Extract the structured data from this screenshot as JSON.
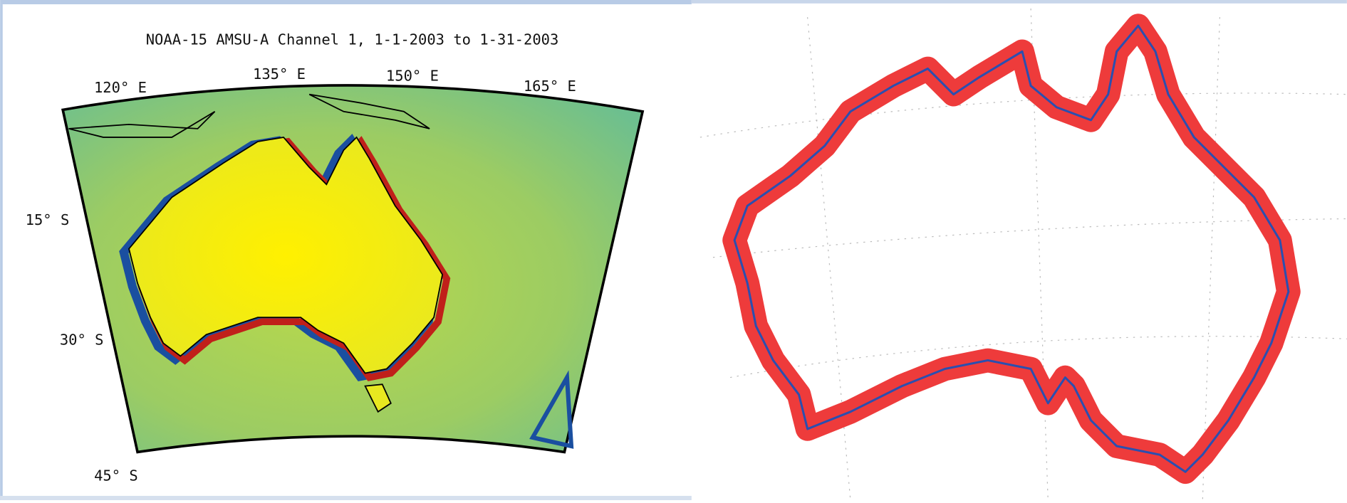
{
  "left_map": {
    "title": "NOAA-15 AMSU-A Channel 1, 1-1-2003 to 1-31-2003",
    "lon_labels": [
      "120° E",
      "135° E",
      "150° E",
      "165° E"
    ],
    "lat_labels": [
      "15° S",
      "30° S",
      "45° S"
    ]
  }
}
